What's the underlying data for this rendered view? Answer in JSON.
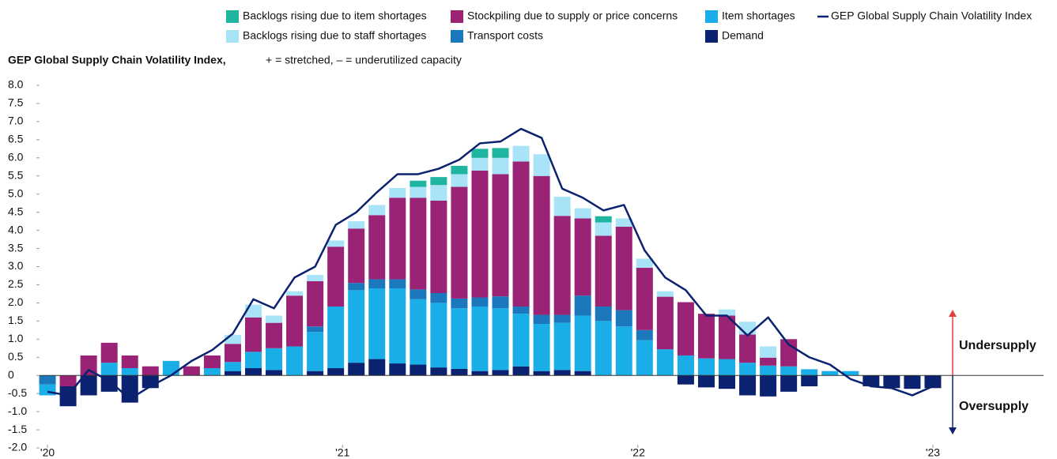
{
  "chart_data": {
    "type": "bar",
    "stacked": true,
    "title": "GEP Global Supply Chain Volatility Index,",
    "subtitle": "+ = stretched, – = underutilized capacity",
    "annotations": [
      "Undersupply",
      "Oversupply"
    ],
    "x": [
      0,
      1,
      2,
      3,
      4,
      5,
      6,
      7,
      8,
      9,
      10,
      11,
      12,
      13,
      14,
      15,
      16,
      17,
      18,
      19,
      20,
      21,
      22,
      23,
      24,
      25,
      26,
      27,
      28,
      29,
      30,
      31,
      32,
      33,
      34,
      35,
      36,
      37,
      38,
      39,
      40,
      41,
      42,
      43
    ],
    "xlim": [
      -1,
      44
    ],
    "xticks": [
      {
        "value": 0,
        "label": "'20"
      },
      {
        "value": 14.33,
        "label": "'21"
      },
      {
        "value": 28.67,
        "label": "'22"
      },
      {
        "value": 43,
        "label": "'23"
      }
    ],
    "ylim": [
      -2,
      8
    ],
    "yticks": [
      {
        "value": 8,
        "label": "8.0"
      },
      7.5,
      {
        "value": 7,
        "label": "7.0"
      },
      6.5,
      {
        "value": 6,
        "label": "6.0"
      },
      5.5,
      {
        "value": 5,
        "label": "5.0"
      },
      4.5,
      {
        "value": 4,
        "label": "4.0"
      },
      3.5,
      {
        "value": 3,
        "label": "3.0"
      },
      2.5,
      {
        "value": 2,
        "label": "2.0"
      },
      1.5,
      {
        "value": 1,
        "label": "1.0"
      },
      0.5,
      0,
      -0.5,
      {
        "value": -1,
        "label": "-1.0"
      },
      -1.5,
      {
        "value": -2,
        "label": "-2.0"
      }
    ],
    "series": [
      {
        "name": "Demand",
        "type": "bar",
        "color": "#0b2270",
        "values": [
          0,
          -0.55,
          -0.55,
          -0.45,
          -0.75,
          -0.35,
          0,
          0,
          0,
          0.12,
          0.2,
          0.15,
          0,
          0.12,
          0.2,
          0.35,
          0.45,
          0.33,
          0.3,
          0.22,
          0.18,
          0.12,
          0.15,
          0.25,
          0.12,
          0.15,
          0.12,
          0,
          0,
          0,
          0,
          -0.25,
          -0.33,
          -0.37,
          -0.55,
          -0.58,
          -0.45,
          -0.3,
          0,
          0,
          -0.3,
          -0.35,
          -0.37,
          -0.35
        ]
      },
      {
        "name": "Item shortages",
        "type": "bar",
        "color": "#19aee8",
        "values": [
          -0.3,
          0,
          0,
          0.35,
          0.2,
          0,
          0.4,
          0,
          0.2,
          0.25,
          0.45,
          0.6,
          0.8,
          1.08,
          1.7,
          2.0,
          1.95,
          2.07,
          1.8,
          1.78,
          1.67,
          1.78,
          1.7,
          1.45,
          1.3,
          1.3,
          1.53,
          1.5,
          1.35,
          0.97,
          0.72,
          0.55,
          0.47,
          0.45,
          0.35,
          0.27,
          0.25,
          0.17,
          0.12,
          0.12,
          0,
          0,
          0,
          0
        ]
      },
      {
        "name": "Transport costs",
        "type": "bar",
        "color": "#1c78bd",
        "values": [
          -0.25,
          0,
          0,
          0,
          0,
          0,
          0,
          0,
          0,
          0,
          0,
          0,
          0,
          0.15,
          0,
          0.2,
          0.25,
          0.25,
          0.27,
          0.27,
          0.27,
          0.25,
          0.33,
          0.2,
          0.25,
          0.22,
          0.55,
          0.4,
          0.45,
          0.28,
          0,
          0,
          0,
          0,
          0,
          0,
          0,
          0,
          0,
          0,
          0,
          0,
          0,
          0
        ]
      },
      {
        "name": "Stockpiling due to supply or price concerns",
        "type": "bar",
        "color": "#9a2376",
        "values": [
          0,
          -0.3,
          0.55,
          0.55,
          0.35,
          0.25,
          0,
          0.25,
          0.35,
          0.5,
          0.95,
          0.7,
          1.4,
          1.25,
          1.65,
          1.5,
          1.77,
          2.25,
          2.53,
          2.55,
          3.08,
          3.5,
          3.37,
          4.0,
          3.83,
          2.73,
          2.13,
          1.95,
          2.3,
          1.72,
          1.45,
          1.47,
          1.23,
          1.2,
          0.78,
          0.22,
          0.75,
          0,
          0,
          0,
          0,
          0,
          0,
          0
        ]
      },
      {
        "name": "Backlogs rising due to staff shortages",
        "type": "bar",
        "color": "#a8e3f7",
        "values": [
          0,
          0,
          0,
          0,
          0,
          0,
          0,
          0,
          0,
          0.25,
          0.35,
          0.2,
          0.12,
          0.17,
          0.17,
          0.2,
          0.28,
          0.27,
          0.3,
          0.43,
          0.35,
          0.35,
          0.45,
          0.43,
          0.6,
          0.53,
          0.28,
          0.37,
          0.23,
          0.25,
          0.15,
          0,
          0,
          0.17,
          0.35,
          0.31,
          0,
          0,
          0,
          0,
          0,
          0,
          0,
          0
        ]
      },
      {
        "name": "Backlogs rising due to item shortages",
        "type": "bar",
        "color": "#1fb5a0",
        "values": [
          0,
          0,
          0,
          0,
          0,
          0,
          0,
          0,
          0,
          0,
          0,
          0,
          0,
          0,
          0,
          0,
          0,
          0,
          0.17,
          0.22,
          0.23,
          0.25,
          0.27,
          0,
          0,
          0,
          0,
          0.17,
          0,
          0,
          0,
          0,
          0,
          0,
          0,
          0,
          0,
          0,
          0,
          0,
          0,
          0,
          0,
          0
        ]
      },
      {
        "name": "GEP Global Supply Chain Volatility Index",
        "type": "line",
        "color": "#0b2270",
        "values": [
          -0.45,
          -0.55,
          0.15,
          -0.15,
          -0.65,
          -0.3,
          0.0,
          0.4,
          0.7,
          1.15,
          2.1,
          1.85,
          2.7,
          3.0,
          4.15,
          4.5,
          5.05,
          5.55,
          5.55,
          5.7,
          5.95,
          6.4,
          6.45,
          6.8,
          6.55,
          5.15,
          4.9,
          4.55,
          4.7,
          3.45,
          2.7,
          2.35,
          1.65,
          1.65,
          1.1,
          1.6,
          0.85,
          0.5,
          0.3,
          -0.1,
          -0.3,
          -0.35,
          -0.55,
          -0.3
        ]
      }
    ]
  }
}
